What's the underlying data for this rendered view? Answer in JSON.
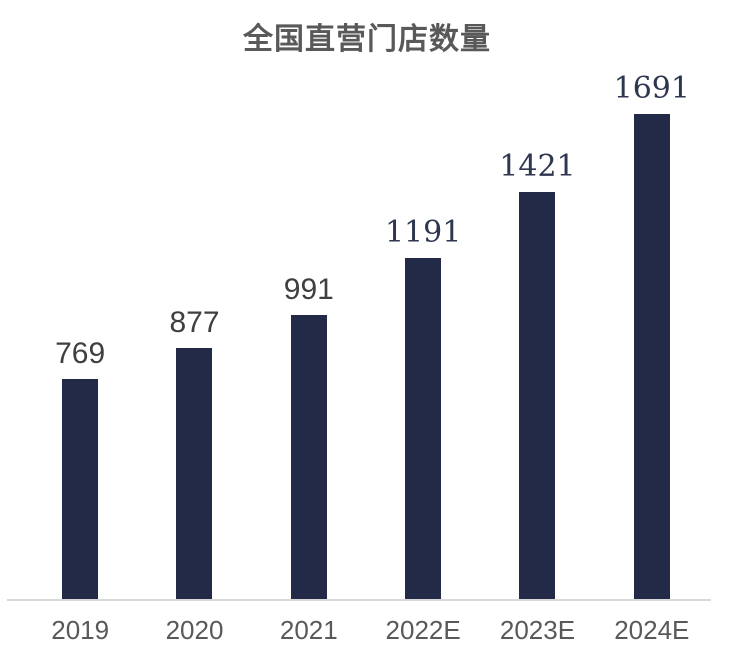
{
  "chart_data": {
    "type": "bar",
    "title": "全国直营门店数量",
    "categories": [
      "2019",
      "2020",
      "2021",
      "2022E",
      "2023E",
      "2024E"
    ],
    "values": [
      769,
      877,
      991,
      1191,
      1421,
      1691
    ],
    "value_labels": [
      "769",
      "877",
      "991",
      "1191",
      "1421",
      "1691"
    ],
    "estimated_flags": [
      false,
      false,
      false,
      true,
      true,
      true
    ],
    "xlabel": "",
    "ylabel": "",
    "ylim": [
      0,
      1700
    ],
    "grid": false,
    "legend": "none",
    "value_labels_shown": true,
    "colors": {
      "bar": "#222A48",
      "title": "#595959",
      "value_label": "#3F3F3F",
      "estimate_value_label": "#2E3650",
      "axis_tick_label": "#595959",
      "axis_line": "#D9D9D9",
      "background": "#FFFFFF"
    }
  }
}
